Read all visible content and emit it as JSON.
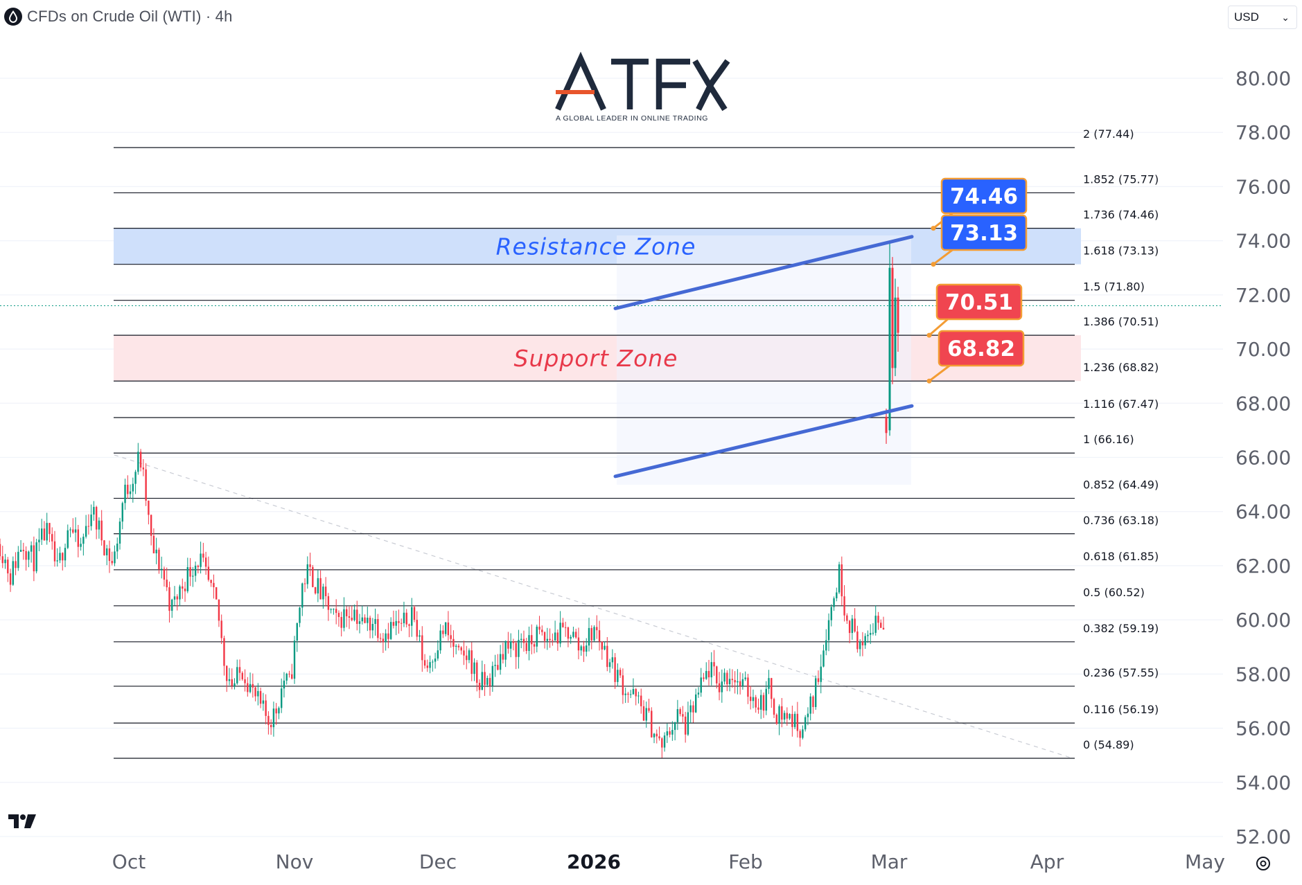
{
  "header": {
    "title": "CFDs on Crude Oil (WTI) · 4h",
    "icon": "oil-drop-icon"
  },
  "currency": {
    "selected": "USD"
  },
  "logo": {
    "text": "ATFX",
    "tagline": "A GLOBAL LEADER IN ONLINE TRADING",
    "colors": {
      "main": "#1f2a3c",
      "accent": "#e8552c"
    }
  },
  "tradingview_mark": "17",
  "chart_data": {
    "type": "candlestick",
    "instrument": "CFDs on Crude Oil (WTI)",
    "timeframe": "4h",
    "currency": "USD",
    "y_axis": {
      "ticks": [
        "80.00",
        "78.00",
        "76.00",
        "74.00",
        "72.00",
        "70.00",
        "68.00",
        "66.00",
        "64.00",
        "62.00",
        "60.00",
        "58.00",
        "56.00",
        "54.00",
        "52.00"
      ],
      "min": 52,
      "max": 80.5
    },
    "x_axis": {
      "ticks": [
        "Oct",
        "Nov",
        "Dec",
        "2026",
        "Feb",
        "Mar",
        "Apr",
        "May"
      ],
      "bold": [
        "2026"
      ]
    },
    "current_price": 71.6,
    "fibonacci_levels": [
      {
        "ratio": "2",
        "price": 77.44
      },
      {
        "ratio": "1.852",
        "price": 75.77
      },
      {
        "ratio": "1.736",
        "price": 74.46
      },
      {
        "ratio": "1.618",
        "price": 73.13
      },
      {
        "ratio": "1.5",
        "price": 71.8
      },
      {
        "ratio": "1.386",
        "price": 70.51
      },
      {
        "ratio": "1.236",
        "price": 68.82
      },
      {
        "ratio": "1.116",
        "price": 67.47
      },
      {
        "ratio": "1",
        "price": 66.16
      },
      {
        "ratio": "0.852",
        "price": 64.49
      },
      {
        "ratio": "0.736",
        "price": 63.18
      },
      {
        "ratio": "0.618",
        "price": 61.85
      },
      {
        "ratio": "0.5",
        "price": 60.52
      },
      {
        "ratio": "0.382",
        "price": 59.19
      },
      {
        "ratio": "0.236",
        "price": 57.55
      },
      {
        "ratio": "0.116",
        "price": 56.19
      },
      {
        "ratio": "0",
        "price": 54.89
      }
    ],
    "zones": [
      {
        "label": "Resistance Zone",
        "from": 73.13,
        "to": 74.46,
        "fill": "#cfe0fb",
        "text_color": "#2962ff"
      },
      {
        "label": "Support Zone",
        "from": 68.82,
        "to": 70.51,
        "fill": "#fde6e8",
        "text_color": "#e8394a"
      }
    ],
    "callouts": [
      {
        "text": "74.46",
        "price": 74.46,
        "color": "#2962ff"
      },
      {
        "text": "73.13",
        "price": 73.13,
        "color": "#2962ff"
      },
      {
        "text": "70.51",
        "price": 70.51,
        "color": "#f04550"
      },
      {
        "text": "68.82",
        "price": 68.82,
        "color": "#f04550"
      }
    ],
    "channel": {
      "color": "#4569d4",
      "upper": {
        "start": 71.5,
        "end": 74.15
      },
      "lower": {
        "start": 65.3,
        "end": 67.9
      }
    },
    "price_path": [
      [
        0.0,
        62.8
      ],
      [
        0.012,
        61.6
      ],
      [
        0.025,
        62.9
      ],
      [
        0.038,
        62.2
      ],
      [
        0.052,
        63.3
      ],
      [
        0.065,
        61.8
      ],
      [
        0.078,
        63.6
      ],
      [
        0.09,
        62.5
      ],
      [
        0.103,
        64.1
      ],
      [
        0.116,
        63.0
      ],
      [
        0.128,
        62.0
      ],
      [
        0.14,
        64.6
      ],
      [
        0.152,
        65.4
      ],
      [
        0.158,
        66.1
      ],
      [
        0.164,
        64.8
      ],
      [
        0.172,
        62.6
      ],
      [
        0.183,
        61.9
      ],
      [
        0.194,
        60.4
      ],
      [
        0.205,
        61.2
      ],
      [
        0.216,
        61.9
      ],
      [
        0.226,
        62.3
      ],
      [
        0.237,
        61.2
      ],
      [
        0.246,
        60.4
      ],
      [
        0.255,
        58.2
      ],
      [
        0.264,
        57.6
      ],
      [
        0.275,
        58.2
      ],
      [
        0.286,
        57.3
      ],
      [
        0.296,
        56.7
      ],
      [
        0.304,
        56.3
      ],
      [
        0.312,
        56.6
      ],
      [
        0.321,
        57.8
      ],
      [
        0.328,
        57.6
      ],
      [
        0.335,
        59.4
      ],
      [
        0.342,
        61.3
      ],
      [
        0.349,
        61.8
      ],
      [
        0.355,
        61.5
      ],
      [
        0.362,
        61.0
      ],
      [
        0.371,
        60.5
      ],
      [
        0.38,
        59.9
      ],
      [
        0.39,
        60.2
      ],
      [
        0.4,
        60.4
      ],
      [
        0.411,
        59.8
      ],
      [
        0.423,
        60.0
      ],
      [
        0.433,
        59.5
      ],
      [
        0.444,
        59.8
      ],
      [
        0.455,
        59.7
      ],
      [
        0.466,
        60.4
      ],
      [
        0.474,
        59.2
      ],
      [
        0.482,
        58.2
      ],
      [
        0.492,
        58.9
      ],
      [
        0.503,
        59.7
      ],
      [
        0.512,
        59.1
      ],
      [
        0.521,
        58.5
      ],
      [
        0.531,
        58.7
      ],
      [
        0.542,
        57.6
      ],
      [
        0.551,
        57.7
      ],
      [
        0.561,
        58.2
      ],
      [
        0.571,
        59.1
      ],
      [
        0.58,
        58.8
      ],
      [
        0.59,
        59.3
      ],
      [
        0.599,
        59.0
      ],
      [
        0.608,
        59.5
      ],
      [
        0.617,
        59.2
      ],
      [
        0.627,
        59.4
      ],
      [
        0.637,
        59.5
      ],
      [
        0.646,
        59.6
      ],
      [
        0.656,
        58.9
      ],
      [
        0.665,
        59.3
      ],
      [
        0.673,
        59.7
      ],
      [
        0.681,
        59.1
      ],
      [
        0.69,
        58.5
      ],
      [
        0.698,
        58.0
      ],
      [
        0.707,
        57.5
      ],
      [
        0.716,
        57.2
      ],
      [
        0.725,
        56.8
      ],
      [
        0.733,
        56.4
      ],
      [
        0.741,
        55.8
      ],
      [
        0.748,
        55.3
      ],
      [
        0.753,
        55.5
      ],
      [
        0.76,
        56.1
      ],
      [
        0.768,
        56.5
      ],
      [
        0.777,
        56.0
      ],
      [
        0.786,
        56.9
      ],
      [
        0.795,
        57.6
      ],
      [
        0.804,
        58.3
      ],
      [
        0.812,
        57.5
      ],
      [
        0.82,
        57.9
      ],
      [
        0.829,
        58.0
      ],
      [
        0.838,
        57.6
      ],
      [
        0.846,
        57.4
      ],
      [
        0.854,
        57.1
      ],
      [
        0.862,
        56.9
      ],
      [
        0.871,
        57.5
      ],
      [
        0.878,
        56.6
      ],
      [
        0.886,
        56.5
      ],
      [
        0.895,
        56.4
      ],
      [
        0.903,
        56.0
      ],
      [
        0.912,
        56.2
      ],
      [
        0.921,
        57.2
      ],
      [
        0.928,
        58.3
      ],
      [
        0.935,
        59.6
      ],
      [
        0.943,
        60.7
      ],
      [
        0.95,
        61.8
      ],
      [
        0.956,
        60.5
      ],
      [
        0.963,
        59.8
      ],
      [
        0.971,
        59.3
      ],
      [
        0.978,
        58.8
      ],
      [
        0.985,
        59.6
      ],
      [
        0.992,
        60.1
      ],
      [
        1.0,
        59.7
      ]
    ]
  }
}
